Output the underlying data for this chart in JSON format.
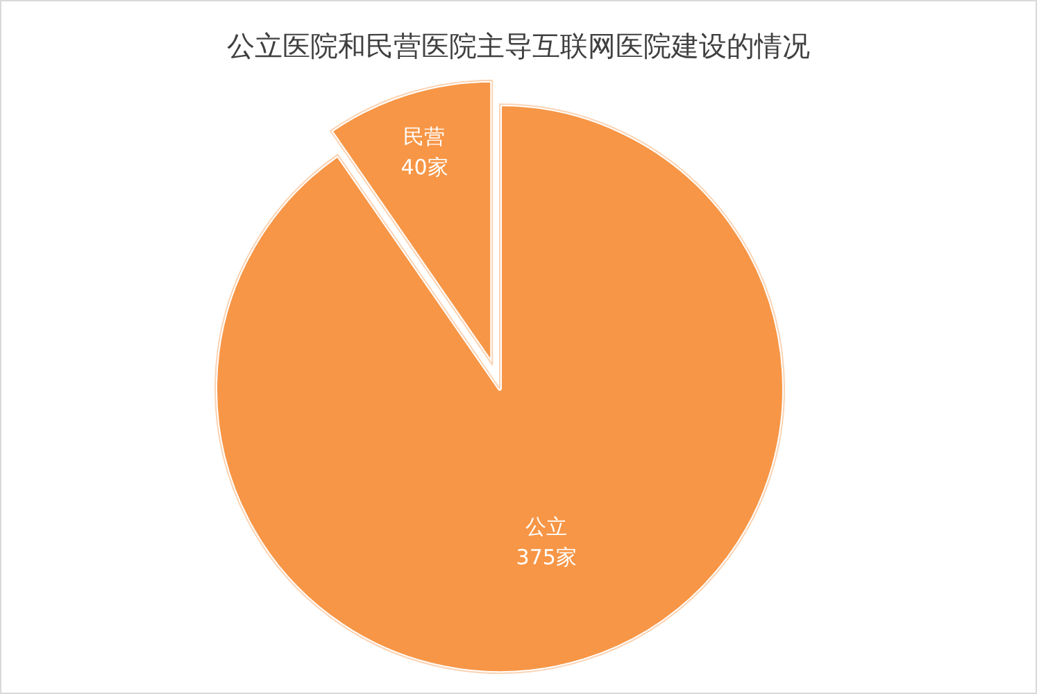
{
  "chart_data": {
    "type": "pie",
    "title": "公立医院和民营医院主导互联网医院建设的情况",
    "categories": [
      "公立",
      "民营"
    ],
    "values": [
      375,
      40
    ],
    "colors": [
      "#f79646",
      "#f79646"
    ],
    "value_labels": [
      "375家",
      "40家"
    ]
  }
}
